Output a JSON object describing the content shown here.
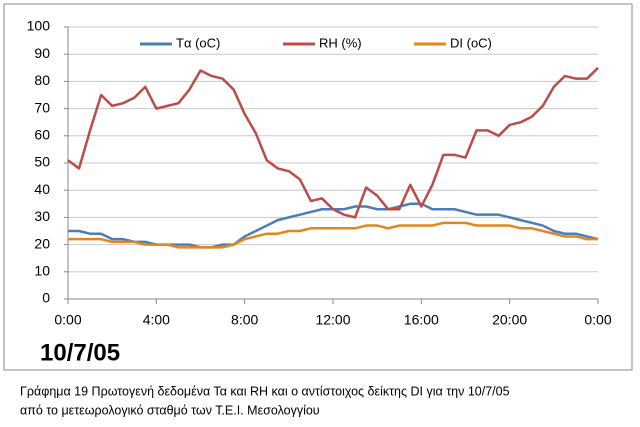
{
  "chart_data": {
    "type": "line",
    "x": [
      0,
      0.5,
      1,
      1.5,
      2,
      2.5,
      3,
      3.5,
      4,
      4.5,
      5,
      5.5,
      6,
      6.5,
      7,
      7.5,
      8,
      8.5,
      9,
      9.5,
      10,
      10.5,
      11,
      11.5,
      12,
      12.5,
      13,
      13.5,
      14,
      14.5,
      15,
      15.5,
      16,
      16.5,
      17,
      17.5,
      18,
      18.5,
      19,
      19.5,
      20,
      20.5,
      21,
      21.5,
      22,
      22.5,
      23,
      23.5,
      24
    ],
    "series": [
      {
        "name": "Tα (oC)",
        "color": "#4a7ebb",
        "values": [
          25,
          25,
          24,
          24,
          22,
          22,
          21,
          21,
          20,
          20,
          20,
          20,
          19,
          19,
          20,
          20,
          23,
          25,
          27,
          29,
          30,
          31,
          32,
          33,
          33,
          33,
          34,
          34,
          33,
          33,
          34,
          35,
          35,
          33,
          33,
          33,
          32,
          31,
          31,
          31,
          30,
          29,
          28,
          27,
          25,
          24,
          24,
          23,
          22
        ]
      },
      {
        "name": "RH (%)",
        "color": "#be4b48",
        "values": [
          51,
          48,
          62,
          75,
          71,
          72,
          74,
          78,
          70,
          71,
          72,
          77,
          84,
          82,
          81,
          77,
          68,
          61,
          51,
          48,
          47,
          44,
          36,
          37,
          33,
          31,
          30,
          41,
          38,
          33,
          33,
          42,
          34,
          42,
          53,
          53,
          52,
          62,
          62,
          60,
          64,
          65,
          67,
          71,
          78,
          82,
          81,
          81,
          85
        ]
      },
      {
        "name": "DI (oC)",
        "color": "#e3851e",
        "values": [
          22,
          22,
          22,
          22,
          21,
          21,
          21,
          20,
          20,
          20,
          19,
          19,
          19,
          19,
          19,
          20,
          22,
          23,
          24,
          24,
          25,
          25,
          26,
          26,
          26,
          26,
          26,
          27,
          27,
          26,
          27,
          27,
          27,
          27,
          28,
          28,
          28,
          27,
          27,
          27,
          27,
          26,
          26,
          25,
          24,
          23,
          23,
          22,
          22
        ]
      }
    ],
    "xlim": [
      0,
      24
    ],
    "xticks": [
      {
        "value": 0,
        "label": "0:00"
      },
      {
        "value": 4,
        "label": "4:00"
      },
      {
        "value": 8,
        "label": "8:00"
      },
      {
        "value": 12,
        "label": "12:00"
      },
      {
        "value": 16,
        "label": "16:00"
      },
      {
        "value": 20,
        "label": "20:00"
      },
      {
        "value": 24,
        "label": "0:00"
      }
    ],
    "ylim": [
      0,
      100
    ],
    "yticks": [
      0,
      10,
      20,
      30,
      40,
      50,
      60,
      70,
      80,
      90,
      100
    ],
    "grid": true,
    "legend": "top",
    "annotation": "10/7/05"
  },
  "caption": [
    "Γράφημα 19 Πρωτογενή δεδομένα Τα και RH και ο αντίστοιχος δείκτης DI για την 10/7/05",
    "από το μετεωρολογικό σταθμό των Τ.Ε.Ι. Μεσολογγίου"
  ]
}
